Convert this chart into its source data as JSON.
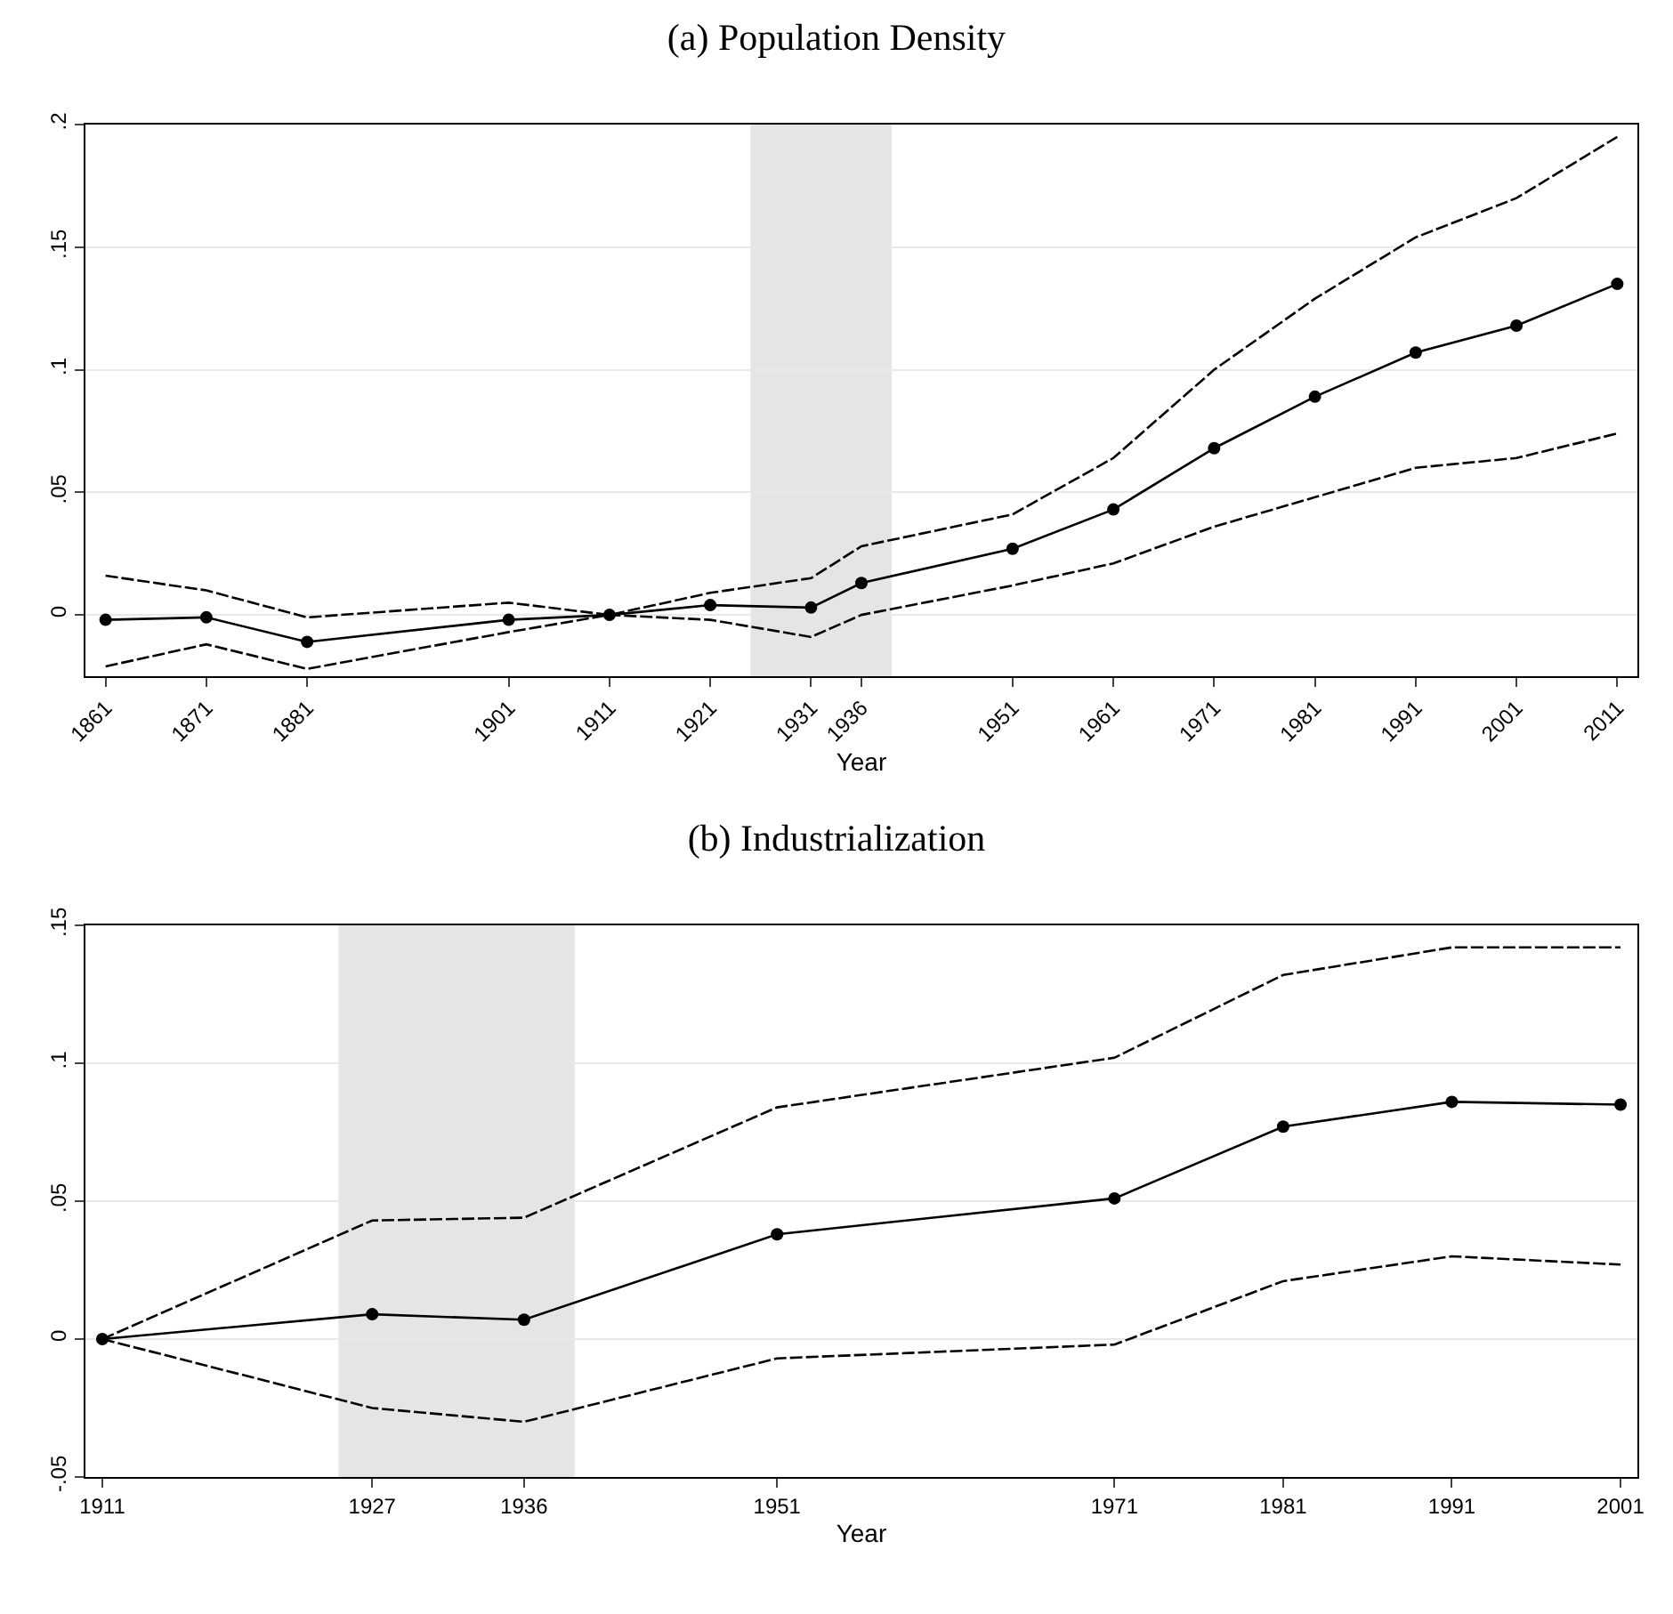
{
  "chart_data": [
    {
      "type": "line",
      "title": "(a) Population Density",
      "xlabel": "Year",
      "x": [
        1861,
        1871,
        1881,
        1901,
        1911,
        1921,
        1931,
        1936,
        1951,
        1961,
        1971,
        1981,
        1991,
        2001,
        2011
      ],
      "series": [
        {
          "color": "#000000",
          "line_style": "solid",
          "marker": "circle",
          "values": [
            -0.002,
            -0.001,
            -0.011,
            -0.002,
            0,
            0.004,
            0.003,
            0.013,
            0.027,
            0.043,
            0.068,
            0.089,
            0.107,
            0.118,
            0.135
          ]
        },
        {
          "color": "#000000",
          "line_style": "dashed",
          "marker": "none",
          "values": [
            0.016,
            0.01,
            -0.001,
            0.005,
            0,
            0.009,
            0.015,
            0.028,
            0.041,
            0.064,
            0.1,
            0.129,
            0.154,
            0.17,
            0.195
          ]
        },
        {
          "color": "#000000",
          "line_style": "dashed",
          "marker": "none",
          "values": [
            -0.021,
            -0.012,
            -0.022,
            -0.007,
            0,
            -0.002,
            -0.009,
            0,
            0.012,
            0.021,
            0.036,
            0.048,
            0.06,
            0.064,
            0.074
          ]
        }
      ],
      "xlim": [
        1859,
        2013
      ],
      "xticks": [
        1861,
        1871,
        1881,
        1901,
        1911,
        1921,
        1931,
        1936,
        1951,
        1961,
        1971,
        1981,
        1991,
        2001,
        2011
      ],
      "ylim": [
        -0.025,
        0.2
      ],
      "yticks": [
        0,
        {
          "value": 0.05,
          "label": ".05"
        },
        {
          "value": 0.1,
          "label": ".1"
        },
        {
          "value": 0.15,
          "label": ".15"
        },
        {
          "value": 0.2,
          "label": ".2"
        }
      ],
      "bands": [
        {
          "axis": "x",
          "from": 1925,
          "to": 1939,
          "color": "#e5e5e5"
        }
      ],
      "grid": "y"
    },
    {
      "type": "line",
      "title": "(b) Industrialization",
      "xlabel": "Year",
      "x": [
        1911,
        1927,
        1936,
        1951,
        1971,
        1981,
        1991,
        2001
      ],
      "series": [
        {
          "color": "#000000",
          "line_style": "solid",
          "marker": "circle",
          "values": [
            0,
            0.009,
            0.007,
            0.038,
            0.051,
            0.077,
            0.086,
            0.085
          ]
        },
        {
          "color": "#000000",
          "line_style": "dashed",
          "marker": "none",
          "values": [
            0,
            0.043,
            0.044,
            0.084,
            0.102,
            0.132,
            0.142,
            0.142
          ]
        },
        {
          "color": "#000000",
          "line_style": "dashed",
          "marker": "none",
          "values": [
            0,
            -0.025,
            -0.03,
            -0.007,
            -0.002,
            0.021,
            0.03,
            0.027
          ]
        }
      ],
      "xlim": [
        1910,
        2002
      ],
      "xticks": [
        1911,
        1927,
        1936,
        1951,
        1971,
        1981,
        1991,
        2001
      ],
      "ylim": [
        -0.05,
        0.15
      ],
      "yticks": [
        {
          "value": -0.05,
          "label": "-.05"
        },
        0,
        {
          "value": 0.05,
          "label": ".05"
        },
        {
          "value": 0.1,
          "label": ".1"
        },
        {
          "value": 0.15,
          "label": ".15"
        }
      ],
      "bands": [
        {
          "axis": "x",
          "from": 1925,
          "to": 1939,
          "color": "#e5e5e5"
        }
      ],
      "grid": "y"
    }
  ]
}
